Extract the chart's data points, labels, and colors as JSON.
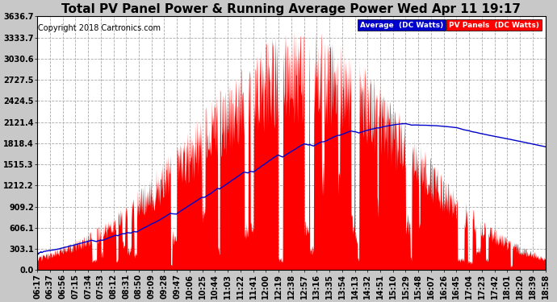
{
  "title": "Total PV Panel Power & Running Average Power Wed Apr 11 19:17",
  "copyright": "Copyright 2018 Cartronics.com",
  "legend_avg": "Average  (DC Watts)",
  "legend_pv": "PV Panels  (DC Watts)",
  "ymax": 3636.7,
  "yticks": [
    0.0,
    303.1,
    606.1,
    909.2,
    1212.2,
    1515.3,
    1818.4,
    2121.4,
    2424.5,
    2727.5,
    3030.6,
    3333.7,
    3636.7
  ],
  "ytick_labels": [
    "0.0",
    "303.1",
    "606.1",
    "909.2",
    "1212.2",
    "1515.3",
    "1818.4",
    "2121.4",
    "2424.5",
    "2727.5",
    "3030.6",
    "3333.7",
    "3636.7"
  ],
  "x_labels": [
    "06:17",
    "06:37",
    "06:56",
    "07:15",
    "07:34",
    "07:53",
    "08:12",
    "08:31",
    "08:50",
    "09:09",
    "09:28",
    "09:47",
    "10:06",
    "10:25",
    "10:44",
    "11:03",
    "11:22",
    "11:41",
    "12:00",
    "12:19",
    "12:38",
    "12:57",
    "13:16",
    "13:35",
    "13:54",
    "14:13",
    "14:32",
    "14:51",
    "15:10",
    "15:29",
    "15:48",
    "16:07",
    "16:26",
    "16:45",
    "17:04",
    "17:23",
    "17:42",
    "18:01",
    "18:20",
    "18:39",
    "18:58"
  ],
  "bg_color": "#c8c8c8",
  "plot_bg_color": "#ffffff",
  "pv_color": "#ff0000",
  "avg_color": "#0000cc",
  "grid_color": "#aaaaaa",
  "title_fontsize": 11,
  "tick_fontsize": 7,
  "copyright_fontsize": 7
}
